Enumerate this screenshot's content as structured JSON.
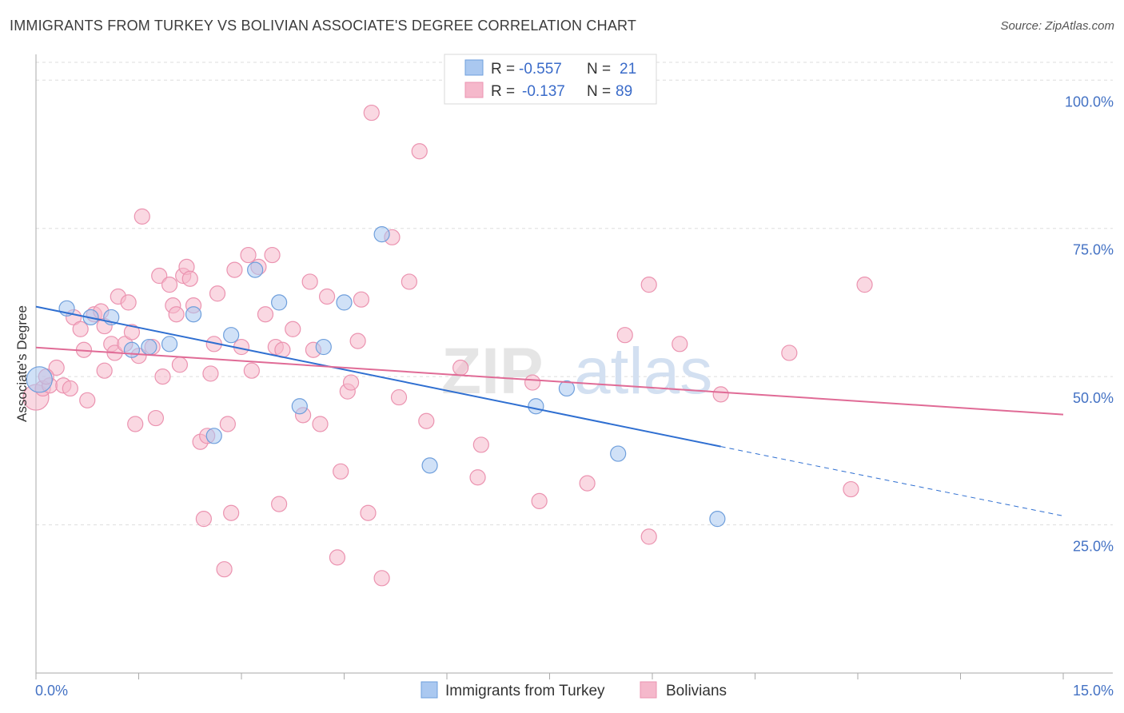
{
  "title": "IMMIGRANTS FROM TURKEY VS BOLIVIAN ASSOCIATE'S DEGREE CORRELATION CHART",
  "source": "Source: ZipAtlas.com",
  "watermark": {
    "zip": "ZIP",
    "atlas": "atlas"
  },
  "colors": {
    "blue_fill": "#aac8f0",
    "blue_stroke": "#6f9fdc",
    "blue_line": "#2f6fd1",
    "pink_fill": "#f5b8cb",
    "pink_stroke": "#eb93b0",
    "pink_line": "#e06b96",
    "grid": "#dddddd",
    "axis": "#999999"
  },
  "legend": {
    "rows": [
      {
        "r_label": "R =",
        "r_value": "-0.557",
        "n_label": "N =",
        "n_value": "21"
      },
      {
        "r_label": "R =",
        "r_value": "-0.137",
        "n_label": "N =",
        "n_value": "89"
      }
    ]
  },
  "chart_data": {
    "type": "scatter",
    "xlabel": "",
    "ylabel": "Associate's Degree",
    "xlim": [
      0,
      15
    ],
    "ylim": [
      0,
      103
    ],
    "x_tick_labels": [
      "0.0%",
      "15.0%"
    ],
    "y_ticks": [
      25,
      50,
      75,
      100
    ],
    "y_tick_labels": [
      "25.0%",
      "50.0%",
      "75.0%",
      "100.0%"
    ],
    "grid": true,
    "legend_placement": "bottom-center",
    "series": [
      {
        "name": "Immigrants from Turkey",
        "color": "#aac8f0",
        "points": [
          [
            0.05,
            49.5
          ],
          [
            0.45,
            61.5
          ],
          [
            0.8,
            60.0
          ],
          [
            1.1,
            60.0
          ],
          [
            1.4,
            54.5
          ],
          [
            1.65,
            55.0
          ],
          [
            1.95,
            55.5
          ],
          [
            2.3,
            60.5
          ],
          [
            2.6,
            40.0
          ],
          [
            2.85,
            57.0
          ],
          [
            3.2,
            68.0
          ],
          [
            3.55,
            62.5
          ],
          [
            3.85,
            45.0
          ],
          [
            4.2,
            55.0
          ],
          [
            4.5,
            62.5
          ],
          [
            5.05,
            74.0
          ],
          [
            5.75,
            35.0
          ],
          [
            7.3,
            45.0
          ],
          [
            7.75,
            48.0
          ],
          [
            8.5,
            37.0
          ],
          [
            9.95,
            26.0
          ]
        ],
        "trend": {
          "x0": 0.0,
          "y0": 61.8,
          "x1": 10.0,
          "y1": 38.2,
          "dash_to_x": 15.0,
          "dash_to_y": 26.5
        }
      },
      {
        "name": "Bolivians",
        "color": "#f5b8cb",
        "points": [
          [
            0.0,
            46.5
          ],
          [
            0.1,
            48.0
          ],
          [
            0.2,
            48.5
          ],
          [
            0.3,
            51.5
          ],
          [
            0.4,
            48.5
          ],
          [
            0.5,
            48.0
          ],
          [
            0.55,
            60.0
          ],
          [
            0.65,
            58.0
          ],
          [
            0.7,
            54.5
          ],
          [
            0.75,
            46.0
          ],
          [
            0.85,
            60.5
          ],
          [
            0.95,
            61.0
          ],
          [
            1.0,
            51.0
          ],
          [
            1.1,
            55.5
          ],
          [
            1.15,
            54.0
          ],
          [
            1.2,
            63.5
          ],
          [
            1.3,
            55.5
          ],
          [
            1.35,
            62.5
          ],
          [
            1.4,
            57.5
          ],
          [
            1.45,
            42.0
          ],
          [
            1.5,
            53.5
          ],
          [
            1.55,
            77.0
          ],
          [
            1.7,
            55.0
          ],
          [
            1.75,
            43.0
          ],
          [
            1.8,
            67.0
          ],
          [
            1.85,
            50.0
          ],
          [
            1.95,
            65.5
          ],
          [
            2.0,
            62.0
          ],
          [
            2.05,
            60.5
          ],
          [
            2.1,
            52.0
          ],
          [
            2.15,
            67.0
          ],
          [
            2.2,
            68.5
          ],
          [
            2.25,
            66.5
          ],
          [
            2.3,
            62.0
          ],
          [
            2.4,
            39.0
          ],
          [
            2.45,
            26.0
          ],
          [
            2.5,
            40.0
          ],
          [
            2.55,
            50.5
          ],
          [
            2.6,
            55.5
          ],
          [
            2.65,
            64.0
          ],
          [
            2.75,
            17.5
          ],
          [
            2.8,
            42.0
          ],
          [
            2.85,
            27.0
          ],
          [
            2.9,
            68.0
          ],
          [
            3.0,
            55.0
          ],
          [
            3.1,
            70.5
          ],
          [
            3.15,
            51.0
          ],
          [
            3.25,
            68.5
          ],
          [
            3.35,
            60.5
          ],
          [
            3.45,
            70.5
          ],
          [
            3.5,
            55.0
          ],
          [
            3.55,
            28.5
          ],
          [
            3.6,
            54.5
          ],
          [
            3.75,
            58.0
          ],
          [
            3.9,
            43.5
          ],
          [
            4.0,
            66.0
          ],
          [
            4.05,
            54.5
          ],
          [
            4.15,
            42.0
          ],
          [
            4.25,
            63.5
          ],
          [
            4.4,
            19.5
          ],
          [
            4.45,
            34.0
          ],
          [
            4.55,
            47.5
          ],
          [
            4.6,
            49.0
          ],
          [
            4.7,
            56.0
          ],
          [
            4.75,
            63.0
          ],
          [
            4.85,
            27.0
          ],
          [
            4.9,
            94.5
          ],
          [
            5.05,
            16.0
          ],
          [
            5.2,
            73.5
          ],
          [
            5.3,
            46.5
          ],
          [
            5.45,
            66.0
          ],
          [
            5.6,
            88.0
          ],
          [
            5.7,
            42.5
          ],
          [
            6.2,
            51.5
          ],
          [
            6.45,
            33.0
          ],
          [
            6.5,
            38.5
          ],
          [
            7.25,
            49.0
          ],
          [
            7.35,
            29.0
          ],
          [
            8.05,
            32.0
          ],
          [
            8.6,
            57.0
          ],
          [
            8.95,
            65.5
          ],
          [
            8.95,
            23.0
          ],
          [
            9.4,
            55.5
          ],
          [
            10.0,
            47.0
          ],
          [
            11.0,
            54.0
          ],
          [
            11.9,
            31.0
          ],
          [
            12.1,
            65.5
          ],
          [
            0.15,
            50.0
          ],
          [
            1.0,
            58.5
          ]
        ],
        "trend": {
          "x0": 0.0,
          "y0": 54.9,
          "x1": 15.0,
          "y1": 43.6
        }
      }
    ]
  }
}
